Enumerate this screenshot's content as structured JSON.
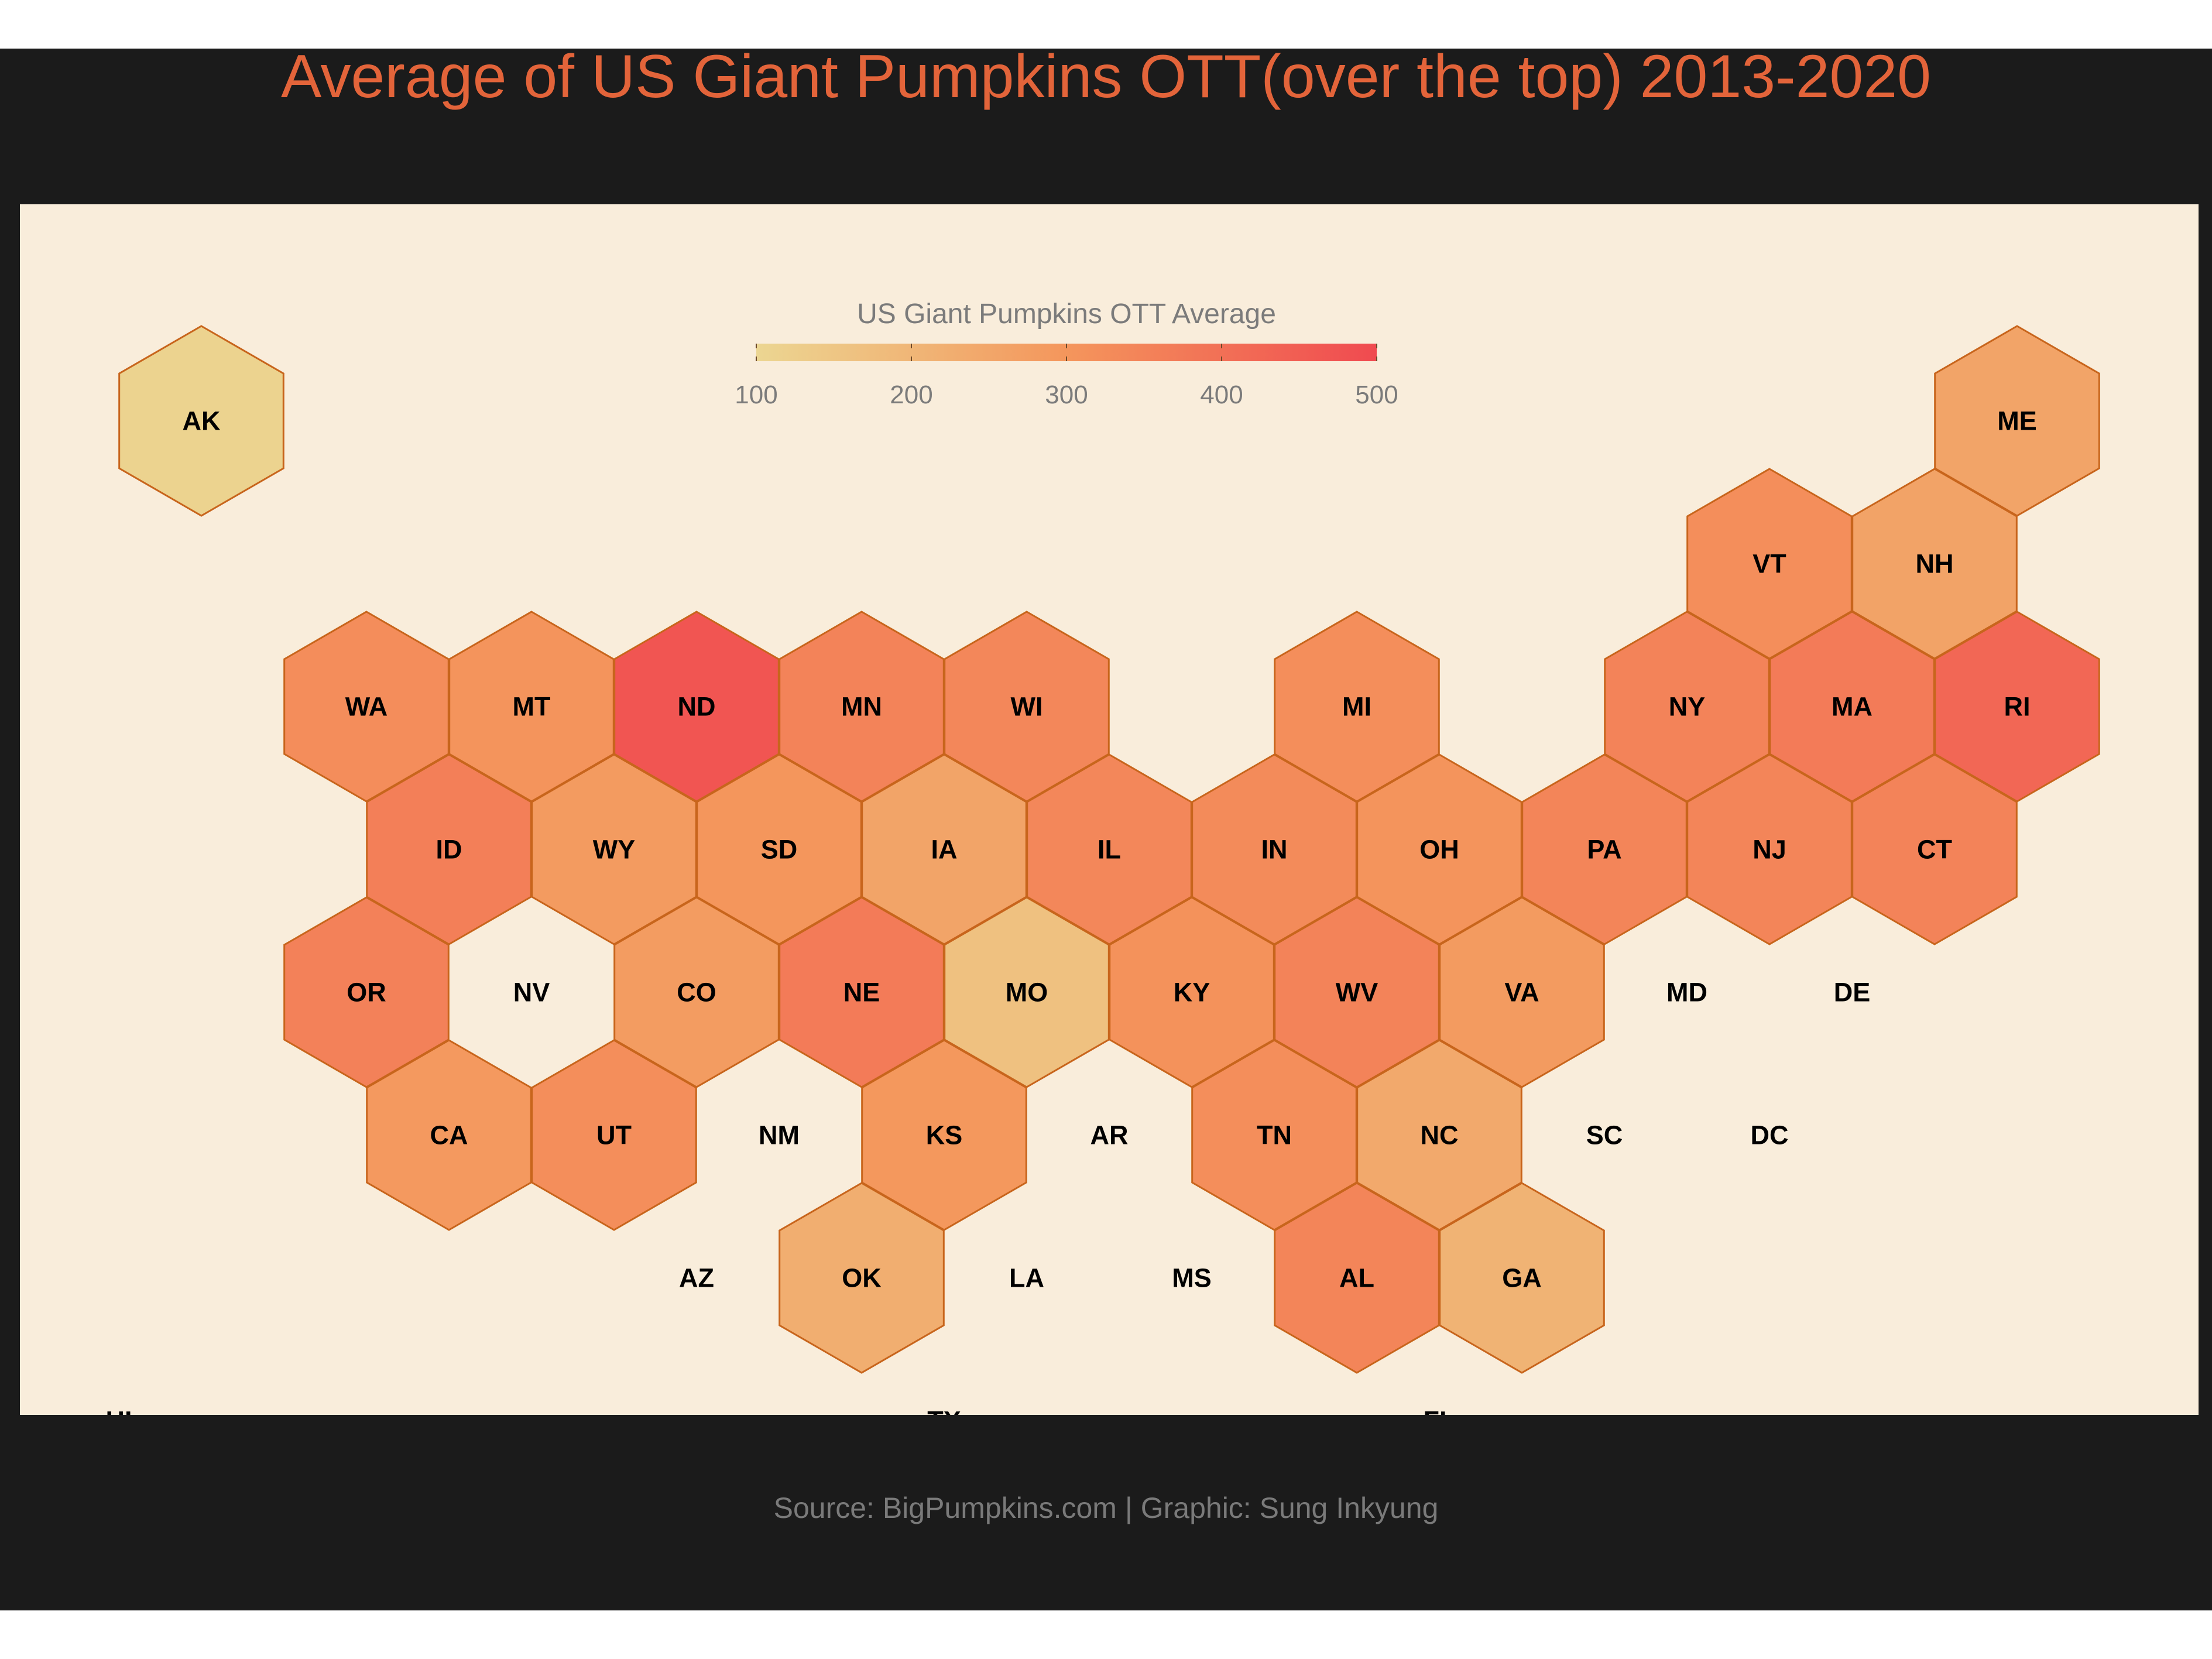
{
  "title": "Average of US Giant Pumpkins OTT(over the top) 2013-2020",
  "caption": "Source: BigPumpkins.com | Graphic: Sung Inkyung",
  "chart_data": {
    "type": "hexbin-map",
    "legend": {
      "title": "US Giant Pumpkins OTT Average",
      "position": "top-center",
      "min": 100,
      "max": 500,
      "ticks": [
        100,
        200,
        300,
        400,
        500
      ],
      "tick_labels": [
        "100",
        "200",
        "300",
        "400",
        "500"
      ],
      "low_color": "#ecd692",
      "high_color": "#f04a50"
    },
    "colors": {
      "panel": "#f9eddb",
      "frame": "#1b1b1b",
      "hex_border": "#c8651c",
      "title": "#e3643a",
      "caption": "#7a7a7a"
    },
    "states": [
      {
        "abbr": "AK",
        "col": 0,
        "row": 0,
        "value": 110
      },
      {
        "abbr": "ME",
        "col": 11,
        "row": 0,
        "value": 255
      },
      {
        "abbr": "VT",
        "col": 9.5,
        "row": 1,
        "value": 320
      },
      {
        "abbr": "NH",
        "col": 10.5,
        "row": 1,
        "value": 260
      },
      {
        "abbr": "WA",
        "col": 1,
        "row": 2,
        "value": 325
      },
      {
        "abbr": "MT",
        "col": 2,
        "row": 2,
        "value": 305
      },
      {
        "abbr": "ND",
        "col": 3,
        "row": 2,
        "value": 470
      },
      {
        "abbr": "MN",
        "col": 4,
        "row": 2,
        "value": 350
      },
      {
        "abbr": "WI",
        "col": 5,
        "row": 2,
        "value": 340
      },
      {
        "abbr": "MI",
        "col": 7,
        "row": 2,
        "value": 320
      },
      {
        "abbr": "NY",
        "col": 9,
        "row": 2,
        "value": 350
      },
      {
        "abbr": "MA",
        "col": 10,
        "row": 2,
        "value": 370
      },
      {
        "abbr": "RI",
        "col": 11,
        "row": 2,
        "value": 425
      },
      {
        "abbr": "ID",
        "col": 1.5,
        "row": 3,
        "value": 360
      },
      {
        "abbr": "WY",
        "col": 2.5,
        "row": 3,
        "value": 285
      },
      {
        "abbr": "SD",
        "col": 3.5,
        "row": 3,
        "value": 300
      },
      {
        "abbr": "IA",
        "col": 4.5,
        "row": 3,
        "value": 255
      },
      {
        "abbr": "IL",
        "col": 5.5,
        "row": 3,
        "value": 340
      },
      {
        "abbr": "IN",
        "col": 6.5,
        "row": 3,
        "value": 330
      },
      {
        "abbr": "OH",
        "col": 7.5,
        "row": 3,
        "value": 305
      },
      {
        "abbr": "PA",
        "col": 8.5,
        "row": 3,
        "value": 345
      },
      {
        "abbr": "NJ",
        "col": 9.5,
        "row": 3,
        "value": 345
      },
      {
        "abbr": "CT",
        "col": 10.5,
        "row": 3,
        "value": 350
      },
      {
        "abbr": "OR",
        "col": 1,
        "row": 4,
        "value": 355
      },
      {
        "abbr": "NV",
        "col": 2,
        "row": 4,
        "value": null
      },
      {
        "abbr": "CO",
        "col": 3,
        "row": 4,
        "value": 280
      },
      {
        "abbr": "NE",
        "col": 4,
        "row": 4,
        "value": 370
      },
      {
        "abbr": "MO",
        "col": 5,
        "row": 4,
        "value": 165
      },
      {
        "abbr": "KY",
        "col": 6,
        "row": 4,
        "value": 310
      },
      {
        "abbr": "WV",
        "col": 7,
        "row": 4,
        "value": 350
      },
      {
        "abbr": "VA",
        "col": 8,
        "row": 4,
        "value": 285
      },
      {
        "abbr": "MD",
        "col": 9,
        "row": 4,
        "value": null
      },
      {
        "abbr": "DE",
        "col": 10,
        "row": 4,
        "value": null
      },
      {
        "abbr": "CA",
        "col": 1.5,
        "row": 5,
        "value": 290
      },
      {
        "abbr": "UT",
        "col": 2.5,
        "row": 5,
        "value": 320
      },
      {
        "abbr": "NM",
        "col": 3.5,
        "row": 5,
        "value": null
      },
      {
        "abbr": "KS",
        "col": 4.5,
        "row": 5,
        "value": 295
      },
      {
        "abbr": "AR",
        "col": 5.5,
        "row": 5,
        "value": null
      },
      {
        "abbr": "TN",
        "col": 6.5,
        "row": 5,
        "value": 320
      },
      {
        "abbr": "NC",
        "col": 7.5,
        "row": 5,
        "value": 240
      },
      {
        "abbr": "SC",
        "col": 8.5,
        "row": 5,
        "value": null
      },
      {
        "abbr": "DC",
        "col": 9.5,
        "row": 5,
        "value": null
      },
      {
        "abbr": "AZ",
        "col": 3,
        "row": 6,
        "value": null
      },
      {
        "abbr": "OK",
        "col": 4,
        "row": 6,
        "value": 225
      },
      {
        "abbr": "LA",
        "col": 5,
        "row": 6,
        "value": null
      },
      {
        "abbr": "MS",
        "col": 6,
        "row": 6,
        "value": null
      },
      {
        "abbr": "AL",
        "col": 7,
        "row": 6,
        "value": 345
      },
      {
        "abbr": "GA",
        "col": 8,
        "row": 6,
        "value": 210
      },
      {
        "abbr": "HI",
        "col": -0.5,
        "row": 7,
        "value": null
      },
      {
        "abbr": "TX",
        "col": 4.5,
        "row": 7,
        "value": null
      },
      {
        "abbr": "FL",
        "col": 7.5,
        "row": 7,
        "value": null
      }
    ]
  }
}
